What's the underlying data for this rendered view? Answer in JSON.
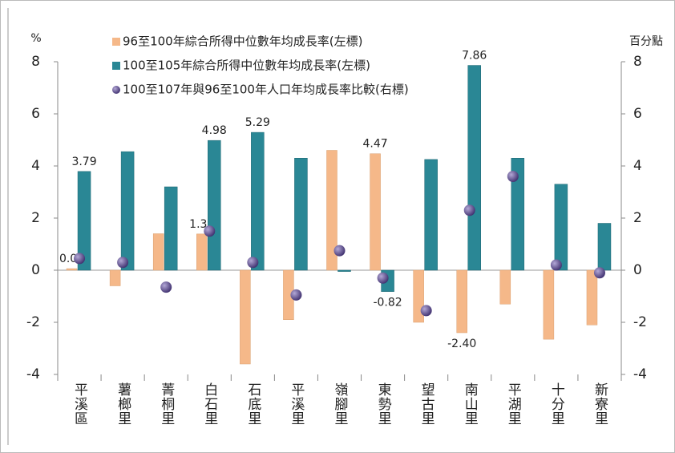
{
  "chart_data": {
    "type": "bar",
    "y_label": "%",
    "y2_label": "百分點",
    "categories": [
      "平溪區",
      "薯榔里",
      "菁桐里",
      "白石里",
      "石底里",
      "平溪里",
      "嶺腳里",
      "東勢里",
      "望古里",
      "南山里",
      "平湖里",
      "十分里",
      "新寮里"
    ],
    "series": [
      {
        "name": "96至100年綜合所得中位數年均成長率(左標)",
        "color": "#f5b889",
        "values": [
          0.06,
          -0.6,
          1.4,
          1.39,
          -3.6,
          -1.9,
          4.6,
          4.47,
          -2.0,
          -2.4,
          -1.3,
          -2.65,
          -2.1
        ],
        "value_labels": [
          "0.06",
          null,
          null,
          "1.39",
          null,
          null,
          null,
          "4.47",
          null,
          "-2.40",
          null,
          null,
          null
        ]
      },
      {
        "name": "100至105年綜合所得中位數年均成長率(左標)",
        "color": "#2a8795",
        "values": [
          3.79,
          4.55,
          3.2,
          4.98,
          5.29,
          4.3,
          -0.05,
          -0.82,
          4.25,
          7.86,
          4.3,
          3.3,
          1.8
        ],
        "value_labels": [
          "3.79",
          null,
          null,
          "4.98",
          "5.29",
          null,
          null,
          "-0.82",
          null,
          "7.86",
          null,
          null,
          null
        ]
      },
      {
        "name": "100至107年與96至100年人口年均成長率比較(右標)",
        "color": "#5a4a8a",
        "type": "scatter",
        "axis": "y2",
        "values": [
          0.45,
          0.3,
          -0.65,
          1.5,
          0.3,
          -0.95,
          0.75,
          -0.3,
          -1.55,
          2.3,
          3.6,
          0.2,
          -0.1
        ]
      }
    ],
    "ylim": [
      -4,
      8
    ],
    "yticks": [
      -4,
      -2,
      0,
      2,
      4,
      6,
      8
    ],
    "y2lim": [
      -4,
      8
    ],
    "y2ticks": [
      -4,
      -2,
      0,
      2,
      4,
      6,
      8
    ],
    "legend": "top-left",
    "grid": false
  }
}
